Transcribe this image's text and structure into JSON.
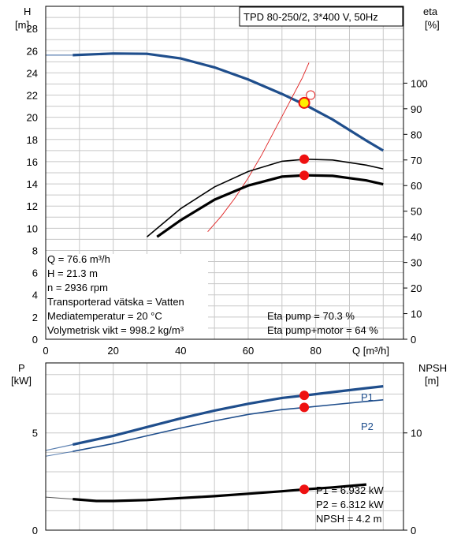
{
  "chart_data": [
    {
      "type": "line",
      "title": "TPD 80-250/2, 3*400 V, 50Hz",
      "xlabel": "Q [m³/h]",
      "ylabel_left_name": "H",
      "ylabel_left_unit": "[m]",
      "ylabel_right_name": "eta",
      "ylabel_right_unit": "[%]",
      "xlim": [
        0,
        106
      ],
      "ylim_left": [
        0,
        30
      ],
      "ylim_right": [
        0,
        130
      ],
      "x_ticks": [
        0,
        20,
        40,
        60,
        80
      ],
      "y_left_ticks": [
        0,
        2,
        4,
        6,
        8,
        10,
        12,
        14,
        16,
        18,
        20,
        22,
        24,
        26,
        28
      ],
      "y_right_ticks": [
        0,
        10,
        20,
        30,
        40,
        50,
        60,
        70,
        80,
        90,
        100
      ],
      "grid": true,
      "colors": {
        "head": "#1f4e8c",
        "efficiency": "#e02020",
        "point": "#ee1111",
        "duty_fill": "#ffee00",
        "text": "#000000"
      },
      "series": [
        {
          "key": "head",
          "axis": "left",
          "x": [
            0,
            8,
            20,
            30,
            40,
            50,
            60,
            70,
            77,
            85,
            95,
            100
          ],
          "values": [
            25.6,
            25.6,
            25.75,
            25.72,
            25.3,
            24.5,
            23.4,
            22.1,
            21.1,
            19.8,
            17.9,
            17.0
          ]
        },
        {
          "key": "eta_pump",
          "axis": "right",
          "x": [
            30,
            40,
            50,
            60,
            70,
            77,
            85,
            95,
            100
          ],
          "values": [
            40.0,
            51.0,
            59.5,
            65.5,
            69.5,
            70.3,
            70.0,
            68.0,
            66.5
          ]
        },
        {
          "key": "eta_pump_motor",
          "axis": "right",
          "x": [
            33,
            40,
            50,
            60,
            70,
            77,
            85,
            95,
            100
          ],
          "values": [
            40.0,
            46.5,
            54.5,
            60.0,
            63.5,
            64.0,
            63.8,
            62.0,
            60.5
          ]
        },
        {
          "key": "eta_thin_red",
          "axis": "right",
          "x": [
            48,
            52,
            56,
            60,
            64,
            68,
            72,
            76,
            78
          ],
          "values": [
            42.0,
            48.0,
            55.0,
            63.0,
            72.0,
            82.0,
            92.0,
            102.0,
            108.0
          ]
        }
      ],
      "duty_point": {
        "x": 76.6,
        "values": [
          21.3,
          70.3,
          64.0
        ]
      },
      "open_marker": {
        "x": 78.5,
        "value": 22.0
      },
      "info": [
        "Q = 76.6 m³/h",
        "H = 21.3 m",
        "n = 2936 rpm",
        "Transporterad vätska = Vatten",
        "Mediatemperatur = 20 °C",
        "Volymetrisk vikt = 998.2 kg/m³"
      ],
      "eta_info": [
        "Eta pump = 70.3 %",
        "Eta pump+motor = 64 %"
      ]
    },
    {
      "type": "line",
      "ylabel_left_name": "P",
      "ylabel_left_unit": "[kW]",
      "ylabel_right_name": "NPSH",
      "ylabel_right_unit": "[m]",
      "xlim": [
        0,
        106
      ],
      "ylim_left": [
        0,
        8.6
      ],
      "ylim_right": [
        0,
        17.2
      ],
      "y_left_ticks": [
        0,
        5
      ],
      "y_right_ticks": [
        0,
        10
      ],
      "grid": true,
      "series": [
        {
          "name": "P1",
          "axis": "left",
          "x": [
            0,
            8,
            20,
            30,
            40,
            50,
            60,
            70,
            77,
            85,
            95,
            100
          ],
          "values": [
            4.1,
            4.4,
            4.85,
            5.3,
            5.75,
            6.15,
            6.5,
            6.8,
            6.932,
            7.1,
            7.3,
            7.4
          ]
        },
        {
          "name": "P2",
          "axis": "left",
          "x": [
            0,
            8,
            20,
            30,
            40,
            50,
            60,
            70,
            77,
            85,
            95,
            100
          ],
          "values": [
            3.8,
            4.05,
            4.45,
            4.85,
            5.25,
            5.62,
            5.95,
            6.2,
            6.312,
            6.45,
            6.62,
            6.7
          ]
        },
        {
          "key": "npsh",
          "axis": "right",
          "x": [
            0,
            8,
            15,
            20,
            30,
            40,
            50,
            60,
            70,
            77,
            85,
            95
          ],
          "values": [
            3.4,
            3.2,
            3.0,
            3.0,
            3.1,
            3.3,
            3.5,
            3.75,
            4.0,
            4.2,
            4.4,
            4.7
          ]
        }
      ],
      "duty_point": {
        "x": 76.6,
        "values": [
          6.932,
          6.312,
          4.2
        ]
      },
      "info": [
        "P1 = 6.932 kW",
        "P2 = 6.312 kW",
        "NPSH = 4.2 m"
      ]
    }
  ]
}
